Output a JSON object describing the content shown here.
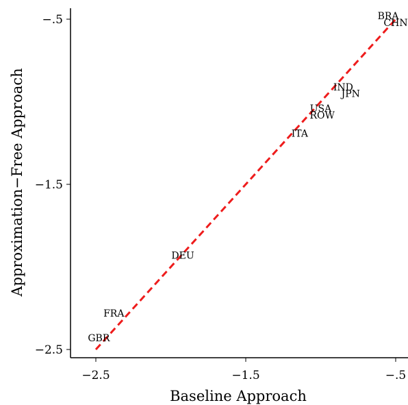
{
  "chart_data": {
    "type": "scatter",
    "title": "",
    "xlabel": "Baseline Approach",
    "ylabel": "Approximation−Free Approach",
    "xlim": [
      -2.65,
      -0.45
    ],
    "ylim": [
      -2.55,
      -0.45
    ],
    "x_ticks": [
      -2.5,
      -1.5,
      -0.5
    ],
    "y_ticks": [
      -2.5,
      -1.5,
      -0.5
    ],
    "x_tick_labels": [
      "−2.5",
      "−1.5",
      "−.5"
    ],
    "y_tick_labels": [
      "−2.5",
      "−1.5",
      "−.5"
    ],
    "grid": false,
    "points": [
      {
        "label": "BRA",
        "x": -0.55,
        "y": -0.48
      },
      {
        "label": "CHN",
        "x": -0.5,
        "y": -0.52
      },
      {
        "label": "IND",
        "x": -0.85,
        "y": -0.91
      },
      {
        "label": "JPN",
        "x": -0.8,
        "y": -0.95
      },
      {
        "label": "USA",
        "x": -1.0,
        "y": -1.04
      },
      {
        "label": "ROW",
        "x": -0.99,
        "y": -1.08
      },
      {
        "label": "ITA",
        "x": -1.14,
        "y": -1.19
      },
      {
        "label": "DEU",
        "x": -1.92,
        "y": -1.93
      },
      {
        "label": "FRA",
        "x": -2.38,
        "y": -2.28
      },
      {
        "label": "GBR",
        "x": -2.48,
        "y": -2.43
      }
    ],
    "reference_line": {
      "type": "45-degree",
      "from": [
        -2.5,
        -2.5
      ],
      "to": [
        -0.5,
        -0.5
      ],
      "color": "#ee1c1c",
      "style": "dashed"
    }
  }
}
